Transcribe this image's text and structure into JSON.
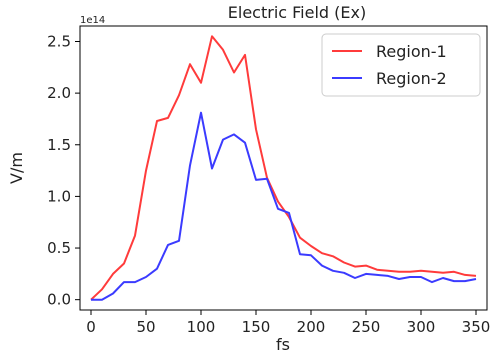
{
  "chart_data": {
    "type": "line",
    "title": "Electric Field (Ex)",
    "xlabel": "fs",
    "ylabel": "V/m",
    "y_offset_label": "1e14",
    "xlim": [
      -10,
      360
    ],
    "ylim": [
      -0.1,
      2.65
    ],
    "x_ticks": [
      0,
      50,
      100,
      150,
      200,
      250,
      300,
      350
    ],
    "y_ticks": [
      0.0,
      0.5,
      1.0,
      1.5,
      2.0,
      2.5
    ],
    "x_tick_labels": [
      "0",
      "50",
      "100",
      "150",
      "200",
      "250",
      "300",
      "350"
    ],
    "y_tick_labels": [
      "0.0",
      "0.5",
      "1.0",
      "1.5",
      "2.0",
      "2.5"
    ],
    "grid": false,
    "legend_position": "top-right",
    "series": [
      {
        "name": "Region-1",
        "color": "#ff3b3b",
        "x": [
          0,
          10,
          20,
          30,
          40,
          50,
          60,
          70,
          80,
          90,
          100,
          110,
          120,
          130,
          140,
          150,
          160,
          170,
          180,
          190,
          200,
          210,
          220,
          230,
          240,
          250,
          260,
          270,
          280,
          290,
          300,
          310,
          320,
          330,
          340,
          350
        ],
        "values": [
          0.0,
          0.1,
          0.25,
          0.35,
          0.62,
          1.25,
          1.73,
          1.76,
          1.98,
          2.28,
          2.1,
          2.55,
          2.42,
          2.2,
          2.37,
          1.65,
          1.18,
          0.95,
          0.8,
          0.6,
          0.52,
          0.45,
          0.42,
          0.36,
          0.32,
          0.33,
          0.29,
          0.28,
          0.27,
          0.27,
          0.28,
          0.27,
          0.26,
          0.27,
          0.24,
          0.23
        ]
      },
      {
        "name": "Region-2",
        "color": "#3b3bff",
        "x": [
          0,
          10,
          20,
          30,
          40,
          50,
          60,
          70,
          80,
          90,
          100,
          110,
          120,
          130,
          140,
          150,
          160,
          170,
          180,
          190,
          200,
          210,
          220,
          230,
          240,
          250,
          260,
          270,
          280,
          290,
          300,
          310,
          320,
          330,
          340,
          350
        ],
        "values": [
          0.0,
          0.0,
          0.06,
          0.17,
          0.17,
          0.22,
          0.3,
          0.53,
          0.57,
          1.3,
          1.81,
          1.27,
          1.55,
          1.6,
          1.52,
          1.16,
          1.17,
          0.88,
          0.84,
          0.44,
          0.43,
          0.33,
          0.28,
          0.26,
          0.21,
          0.25,
          0.24,
          0.23,
          0.2,
          0.22,
          0.22,
          0.17,
          0.21,
          0.18,
          0.18,
          0.2
        ]
      }
    ]
  }
}
